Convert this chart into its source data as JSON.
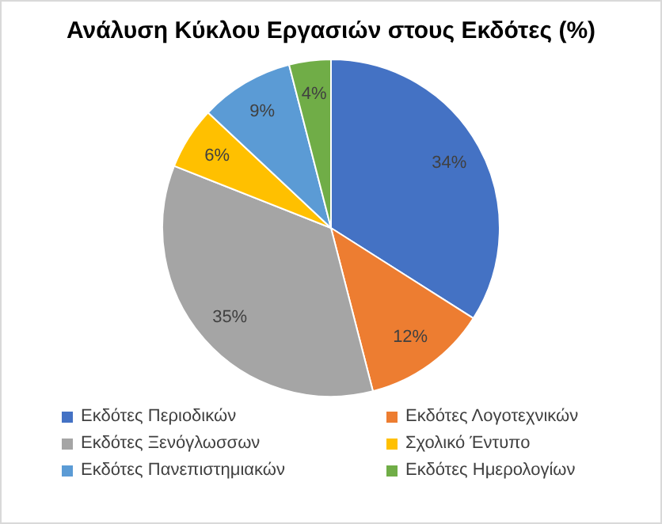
{
  "chart_data": {
    "type": "pie",
    "title": "Ανάλυση Κύκλου Εργασιών στους Εκδότες (%)",
    "categories": [
      "Εκδότες Περιοδικών",
      "Εκδότες Λογοτεχνικών",
      "Εκδότες Ξενόγλωσσων",
      "Σχολικό Έντυπο",
      "Εκδότες Πανεπιστημιακών",
      "Εκδότες Ημερολογίων"
    ],
    "values": [
      34,
      12,
      35,
      6,
      9,
      4
    ],
    "colors": [
      "#4472c4",
      "#ed7d31",
      "#a5a5a5",
      "#ffc000",
      "#5b9bd5",
      "#70ad47"
    ],
    "value_labels": [
      "34%",
      "12%",
      "35%",
      "6%",
      "9%",
      "4%"
    ],
    "legend": "bottom"
  }
}
